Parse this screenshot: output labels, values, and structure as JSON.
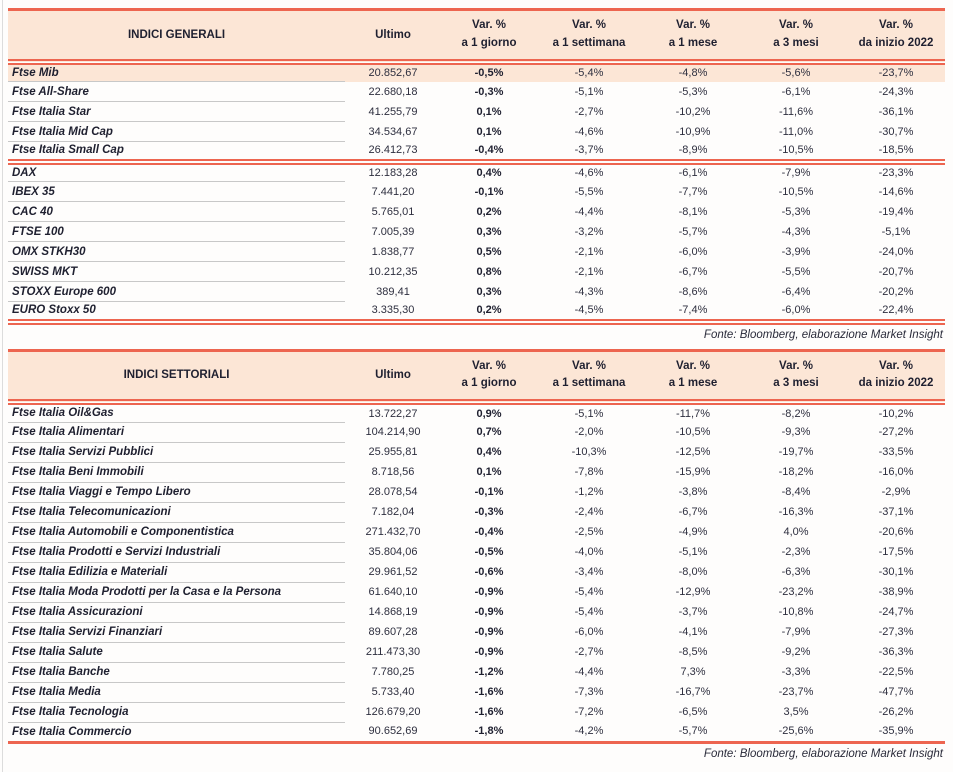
{
  "source_note": "Fonte: Bloomberg, elaborazione Market Insight",
  "colors": {
    "accent_red": "#ed6550",
    "header_peach": "#fce6d6",
    "text_ink": "#1f2030",
    "row_separator_gray": "#c8c8c8"
  },
  "tables": [
    {
      "id": "indici-generali",
      "title": "INDICI GENERALI",
      "headers": {
        "ultimo": "Ultimo",
        "var_pct": "Var. %",
        "periods": [
          "a 1 giorno",
          "a 1 settimana",
          "a 1 mese",
          "a 3 mesi",
          "da inizio 2022"
        ]
      },
      "highlight_first": true,
      "groups": [
        {
          "rows": [
            [
              "Ftse Mib",
              "20.852,67",
              "-0,5%",
              "-5,4%",
              "-4,8%",
              "-5,6%",
              "-23,7%"
            ],
            [
              "Ftse All-Share",
              "22.680,18",
              "-0,3%",
              "-5,1%",
              "-5,3%",
              "-6,1%",
              "-24,3%"
            ],
            [
              "Ftse Italia Star",
              "41.255,79",
              "0,1%",
              "-2,7%",
              "-10,2%",
              "-11,6%",
              "-36,1%"
            ],
            [
              "Ftse Italia Mid Cap",
              "34.534,67",
              "0,1%",
              "-4,6%",
              "-10,9%",
              "-11,0%",
              "-30,7%"
            ],
            [
              "Ftse Italia Small Cap",
              "26.412,73",
              "-0,4%",
              "-3,7%",
              "-8,9%",
              "-10,5%",
              "-18,5%"
            ]
          ]
        },
        {
          "rows": [
            [
              "DAX",
              "12.183,28",
              "0,4%",
              "-4,6%",
              "-6,1%",
              "-7,9%",
              "-23,3%"
            ],
            [
              "IBEX 35",
              "7.441,20",
              "-0,1%",
              "-5,5%",
              "-7,7%",
              "-10,5%",
              "-14,6%"
            ],
            [
              "CAC 40",
              "5.765,01",
              "0,2%",
              "-4,4%",
              "-8,1%",
              "-5,3%",
              "-19,4%"
            ],
            [
              "FTSE 100",
              "7.005,39",
              "0,3%",
              "-3,2%",
              "-5,7%",
              "-4,3%",
              "-5,1%"
            ],
            [
              "OMX STKH30",
              "1.838,77",
              "0,5%",
              "-2,1%",
              "-6,0%",
              "-3,9%",
              "-24,0%"
            ],
            [
              "SWISS MKT",
              "10.212,35",
              "0,8%",
              "-2,1%",
              "-6,7%",
              "-5,5%",
              "-20,7%"
            ],
            [
              "STOXX Europe 600",
              "389,41",
              "0,3%",
              "-4,3%",
              "-8,6%",
              "-6,4%",
              "-20,2%"
            ],
            [
              "EURO Stoxx 50",
              "3.335,30",
              "0,2%",
              "-4,5%",
              "-7,4%",
              "-6,0%",
              "-22,4%"
            ]
          ]
        }
      ]
    },
    {
      "id": "indici-settoriali",
      "title": "INDICI SETTORIALI",
      "headers": {
        "ultimo": "Ultimo",
        "var_pct": "Var. %",
        "periods": [
          "a 1 giorno",
          "a 1 settimana",
          "a 1 mese",
          "a 3 mesi",
          "da inizio 2022"
        ]
      },
      "highlight_first": false,
      "groups": [
        {
          "rows": [
            [
              "Ftse Italia Oil&Gas",
              "13.722,27",
              "0,9%",
              "-5,1%",
              "-11,7%",
              "-8,2%",
              "-10,2%"
            ],
            [
              "Ftse Italia Alimentari",
              "104.214,90",
              "0,7%",
              "-2,0%",
              "-10,5%",
              "-9,3%",
              "-27,2%"
            ],
            [
              "Ftse Italia Servizi Pubblici",
              "25.955,81",
              "0,4%",
              "-10,3%",
              "-12,5%",
              "-19,7%",
              "-33,5%"
            ],
            [
              "Ftse Italia Beni Immobili",
              "8.718,56",
              "0,1%",
              "-7,8%",
              "-15,9%",
              "-18,2%",
              "-16,0%"
            ],
            [
              "Ftse Italia Viaggi e Tempo Libero",
              "28.078,54",
              "-0,1%",
              "-1,2%",
              "-3,8%",
              "-8,4%",
              "-2,9%"
            ],
            [
              "Ftse Italia Telecomunicazioni",
              "7.182,04",
              "-0,3%",
              "-2,4%",
              "-6,7%",
              "-16,3%",
              "-37,1%"
            ],
            [
              "Ftse Italia Automobili e Componentistica",
              "271.432,70",
              "-0,4%",
              "-2,5%",
              "-4,9%",
              "4,0%",
              "-20,6%"
            ],
            [
              "Ftse Italia Prodotti e Servizi Industriali",
              "35.804,06",
              "-0,5%",
              "-4,0%",
              "-5,1%",
              "-2,3%",
              "-17,5%"
            ],
            [
              "Ftse Italia Edilizia e Materiali",
              "29.961,52",
              "-0,6%",
              "-3,4%",
              "-8,0%",
              "-6,3%",
              "-30,1%"
            ],
            [
              "Ftse Italia Moda Prodotti per la Casa e la Persona",
              "61.640,10",
              "-0,9%",
              "-5,4%",
              "-12,9%",
              "-23,2%",
              "-38,9%"
            ],
            [
              "Ftse Italia Assicurazioni",
              "14.868,19",
              "-0,9%",
              "-5,4%",
              "-3,7%",
              "-10,8%",
              "-24,7%"
            ],
            [
              "Ftse Italia Servizi Finanziari",
              "89.607,28",
              "-0,9%",
              "-6,0%",
              "-4,1%",
              "-7,9%",
              "-27,3%"
            ],
            [
              "Ftse Italia Salute",
              "211.473,30",
              "-0,9%",
              "-2,7%",
              "-8,5%",
              "-9,2%",
              "-36,3%"
            ],
            [
              "Ftse Italia Banche",
              "7.780,25",
              "-1,2%",
              "-4,4%",
              "7,3%",
              "-3,3%",
              "-22,5%"
            ],
            [
              "Ftse Italia Media",
              "5.733,40",
              "-1,6%",
              "-7,3%",
              "-16,7%",
              "-23,7%",
              "-47,7%"
            ],
            [
              "Ftse Italia Tecnologia",
              "126.679,20",
              "-1,6%",
              "-7,2%",
              "-6,5%",
              "3,5%",
              "-26,2%"
            ],
            [
              "Ftse Italia Commercio",
              "90.652,69",
              "-1,8%",
              "-4,2%",
              "-5,7%",
              "-25,6%",
              "-35,9%"
            ]
          ]
        }
      ]
    }
  ]
}
